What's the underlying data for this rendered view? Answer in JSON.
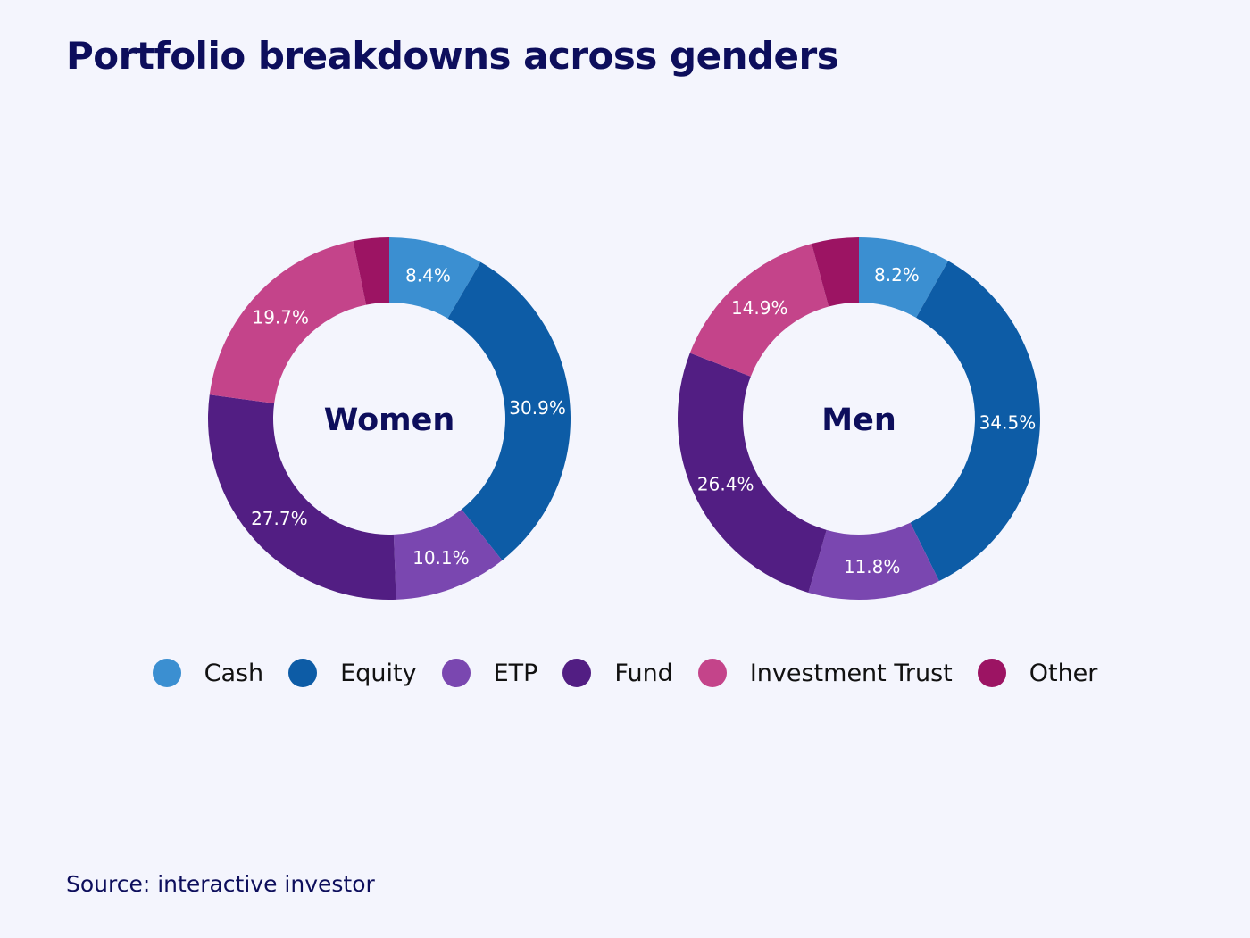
{
  "title": "Portfolio breakdowns across genders",
  "source": "Source: interactive investor",
  "chart_data": {
    "type": "pie",
    "subtype": "donut",
    "categories": [
      "Cash",
      "Equity",
      "ETP",
      "Fund",
      "Investment Trust",
      "Other"
    ],
    "colors": [
      "#3b8fd1",
      "#0d5ca6",
      "#7a47b0",
      "#521e83",
      "#c4448a",
      "#9c1463"
    ],
    "legend_position": "bottom",
    "charts": [
      {
        "label": "Women",
        "values": [
          8.4,
          30.9,
          10.1,
          27.7,
          19.7,
          null
        ],
        "data_labels": [
          "8.4%",
          "30.9%",
          "10.1%",
          "27.7%",
          "19.7%",
          ""
        ]
      },
      {
        "label": "Men",
        "values": [
          8.2,
          34.5,
          11.8,
          26.4,
          14.9,
          null
        ],
        "data_labels": [
          "8.2%",
          "34.5%",
          "11.8%",
          "26.4%",
          "14.9%",
          ""
        ]
      }
    ]
  }
}
